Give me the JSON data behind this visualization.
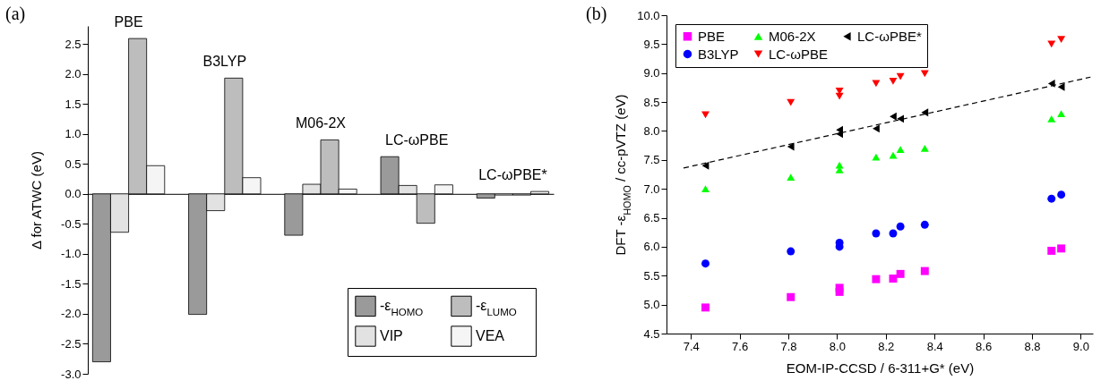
{
  "chart_data": [
    {
      "type": "bar",
      "annotations": [
        "(a)"
      ],
      "ylabel": "Δ for ATWC (eV)",
      "categories": [
        "PBE",
        "B3LYP",
        "M06-2X",
        "LC-ωPBE",
        "LC-ωPBE*"
      ],
      "series": [
        {
          "name": "-ε$_{HOMO}$",
          "color": "#9a9a9a",
          "values": [
            -2.8,
            -2.01,
            -0.69,
            0.62,
            -0.07
          ]
        },
        {
          "name": "VIP",
          "color": "#e2e2e2",
          "values": [
            -0.64,
            -0.28,
            0.16,
            0.14,
            -0.02
          ]
        },
        {
          "name": "-ε$_{LUMO}$",
          "color": "#bdbdbd",
          "values": [
            2.59,
            1.93,
            0.9,
            -0.49,
            -0.02
          ]
        },
        {
          "name": "VEA",
          "color": "#f5f5f5",
          "values": [
            0.47,
            0.27,
            0.08,
            0.15,
            0.04
          ]
        }
      ],
      "ylim": [
        -3.0,
        2.8
      ],
      "yticks": [
        {
          "value": -3,
          "label": "-3.0"
        },
        -2.5,
        {
          "value": -2,
          "label": "-2.0"
        },
        -1.5,
        {
          "value": -1,
          "label": "-1.0"
        },
        -0.5,
        {
          "value": 0,
          "label": "0.0"
        },
        0.5,
        {
          "value": 1,
          "label": "1.0"
        },
        1.5,
        {
          "value": 2,
          "label": "2.0"
        },
        2.5
      ],
      "tick_labels": "y",
      "legend": "bottom right"
    },
    {
      "type": "scatter",
      "annotations": [
        "(b)"
      ],
      "xlabel": "EOM-IP-CCSD / 6-311+G* (eV)",
      "ylabel": "DFT -ε$_{HOMO}$ / cc-pVTZ (eV)",
      "x": [
        7.46,
        7.81,
        8.01,
        8.01,
        8.16,
        8.23,
        8.26,
        8.36,
        8.88,
        8.92
      ],
      "series": [
        {
          "name": "PBE",
          "color": "#ff00ff",
          "marker": "square",
          "values": [
            4.95,
            5.13,
            5.22,
            5.29,
            5.44,
            5.45,
            5.53,
            5.58,
            5.93,
            5.97
          ]
        },
        {
          "name": "B3LYP",
          "color": "#0000ff",
          "marker": "circle",
          "values": [
            5.71,
            5.92,
            6.0,
            6.07,
            6.23,
            6.23,
            6.35,
            6.38,
            6.83,
            6.9
          ]
        },
        {
          "name": "M06-2X",
          "color": "#00ff00",
          "marker": "triangle",
          "values": [
            7.0,
            7.2,
            7.33,
            7.41,
            7.55,
            7.58,
            7.68,
            7.7,
            8.21,
            8.3
          ]
        },
        {
          "name": "LC-ωPBE",
          "color": "#ff0000",
          "marker": "triangle-down",
          "values": [
            8.28,
            8.49,
            8.6,
            8.69,
            8.82,
            8.86,
            8.94,
            8.99,
            9.5,
            9.58
          ]
        },
        {
          "name": "LC-ωPBE*",
          "color": "#000000",
          "marker": "triangle-left",
          "values": [
            7.4,
            7.73,
            7.95,
            8.02,
            8.04,
            8.25,
            8.21,
            8.32,
            8.82,
            8.76
          ]
        },
        {
          "type": "line",
          "color": "#000000",
          "line_style": "dashed",
          "x": [
            7.37,
            9.04
          ],
          "values": [
            7.36,
            8.93
          ]
        }
      ],
      "xlim": [
        7.3,
        9.05
      ],
      "xticks": [
        7.4,
        7.6,
        7.8,
        {
          "value": 8,
          "label": "8.0"
        },
        8.2,
        8.4,
        8.6,
        8.8,
        {
          "value": 9,
          "label": "9.0"
        }
      ],
      "ylim": [
        4.5,
        10.0
      ],
      "yticks": [
        4.5,
        {
          "value": 5,
          "label": "5.0"
        },
        5.5,
        {
          "value": 6,
          "label": "6.0"
        },
        6.5,
        {
          "value": 7,
          "label": "7.0"
        },
        7.5,
        {
          "value": 8,
          "label": "8.0"
        },
        8.5,
        {
          "value": 9,
          "label": "9.0"
        },
        9.5,
        {
          "value": 10,
          "label": "10.0"
        }
      ],
      "legend": "top left"
    }
  ]
}
